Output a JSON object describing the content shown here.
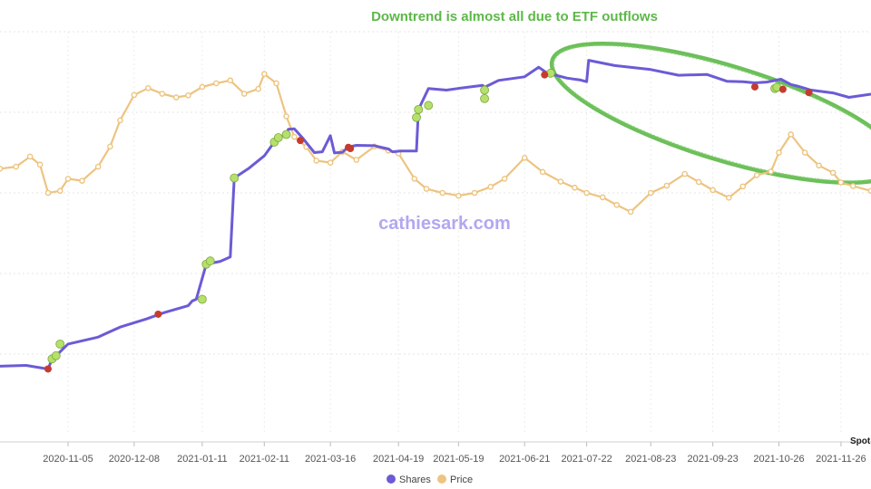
{
  "chart_data": {
    "type": "line",
    "title": "",
    "annotation": "Downtrend is almost all due to ETF outflows",
    "watermark": "cathiesark.com",
    "credit": "Spot",
    "xlabel": "",
    "ylabel": "",
    "x_ticks": [
      "2020-11-05",
      "2020-12-08",
      "2021-01-11",
      "2021-02-11",
      "2021-03-16",
      "2021-04-19",
      "2021-05-19",
      "2021-06-21",
      "2021-07-22",
      "2021-08-23",
      "2021-09-23",
      "2021-10-26",
      "2021-11-26"
    ],
    "x_range": [
      "2020-10-02",
      "2021-12-11"
    ],
    "y_range": [
      0,
      100
    ],
    "grid": true,
    "legend_position": "bottom",
    "colors": {
      "shares": "#6b5bd6",
      "price": "#edc480",
      "buy_marker": "#b5e06b",
      "sell_marker": "#c53b30",
      "annotation": "#5cb848",
      "watermark": "#b1a8f0"
    },
    "series": [
      {
        "name": "Shares",
        "x": [
          "2020-10-02",
          "2020-10-15",
          "2020-10-26",
          "2020-10-28",
          "2020-10-30",
          "2020-11-05",
          "2020-11-20",
          "2020-12-01",
          "2020-12-14",
          "2020-12-23",
          "2021-01-04",
          "2021-01-06",
          "2021-01-08",
          "2021-01-13",
          "2021-01-20",
          "2021-01-25",
          "2021-01-27",
          "2021-02-03",
          "2021-02-11",
          "2021-02-16",
          "2021-02-18",
          "2021-02-22",
          "2021-02-23",
          "2021-02-26",
          "2021-03-02",
          "2021-03-08",
          "2021-03-12",
          "2021-03-16",
          "2021-03-18",
          "2021-03-22",
          "2021-03-25",
          "2021-03-29",
          "2021-04-07",
          "2021-04-14",
          "2021-04-16",
          "2021-04-20",
          "2021-04-28",
          "2021-04-29",
          "2021-04-30",
          "2021-05-04",
          "2021-05-13",
          "2021-05-20",
          "2021-05-31",
          "2021-06-01",
          "2021-06-08",
          "2021-06-21",
          "2021-06-28",
          "2021-07-02",
          "2021-07-12",
          "2021-07-19",
          "2021-07-22",
          "2021-07-23",
          "2021-08-05",
          "2021-08-23",
          "2021-09-06",
          "2021-09-20",
          "2021-09-30",
          "2021-10-08",
          "2021-10-14",
          "2021-10-20",
          "2021-10-25",
          "2021-10-27",
          "2021-11-01",
          "2021-11-05",
          "2021-11-11",
          "2021-11-22",
          "2021-11-30",
          "2021-12-11"
        ],
        "values": [
          17.0,
          17.2,
          16.3,
          18.8,
          19.6,
          22.5,
          24.2,
          26.7,
          28.7,
          30.3,
          32.0,
          33.2,
          33.6,
          42.3,
          43.0,
          44.1,
          63.7,
          66.0,
          69.2,
          72.6,
          73.7,
          74.5,
          75.8,
          75.9,
          73.7,
          70.0,
          70.2,
          74.2,
          69.9,
          70.1,
          71.4,
          71.8,
          71.7,
          70.9,
          70.2,
          70.4,
          70.4,
          80.7,
          81.7,
          85.9,
          85.5,
          86.0,
          86.7,
          86.2,
          87.9,
          88.8,
          91.2,
          89.8,
          88.5,
          88.0,
          87.6,
          92.9,
          91.6,
          90.6,
          89.2,
          89.4,
          87.7,
          87.6,
          87.3,
          87.5,
          88.0,
          88.2,
          86.9,
          86.4,
          85.5,
          84.8,
          83.7,
          84.5
        ]
      },
      {
        "name": "Price",
        "x": [
          "2020-10-02",
          "2020-10-10",
          "2020-10-17",
          "2020-10-22",
          "2020-10-26",
          "2020-11-01",
          "2020-11-05",
          "2020-11-12",
          "2020-11-20",
          "2020-11-26",
          "2020-12-01",
          "2020-12-08",
          "2020-12-15",
          "2020-12-22",
          "2020-12-29",
          "2021-01-04",
          "2021-01-11",
          "2021-01-18",
          "2021-01-25",
          "2021-02-01",
          "2021-02-08",
          "2021-02-11",
          "2021-02-17",
          "2021-02-22",
          "2021-02-26",
          "2021-03-04",
          "2021-03-09",
          "2021-03-16",
          "2021-03-22",
          "2021-03-29",
          "2021-04-07",
          "2021-04-14",
          "2021-04-19",
          "2021-04-27",
          "2021-05-03",
          "2021-05-11",
          "2021-05-19",
          "2021-05-27",
          "2021-06-04",
          "2021-06-11",
          "2021-06-21",
          "2021-06-30",
          "2021-07-09",
          "2021-07-16",
          "2021-07-22",
          "2021-07-30",
          "2021-08-06",
          "2021-08-13",
          "2021-08-23",
          "2021-08-31",
          "2021-09-09",
          "2021-09-16",
          "2021-09-23",
          "2021-10-01",
          "2021-10-08",
          "2021-10-15",
          "2021-10-22",
          "2021-10-26",
          "2021-11-01",
          "2021-11-08",
          "2021-11-15",
          "2021-11-22",
          "2021-11-26",
          "2021-12-02",
          "2021-12-11"
        ],
        "values": [
          66.0,
          66.5,
          69.0,
          67.0,
          60.0,
          60.5,
          63.5,
          63.0,
          66.5,
          71.5,
          78.0,
          84.3,
          86.0,
          84.6,
          83.7,
          84.2,
          86.3,
          87.2,
          87.9,
          84.6,
          85.8,
          89.5,
          87.2,
          79.0,
          73.9,
          71.4,
          68.0,
          67.5,
          70.2,
          68.2,
          71.5,
          70.5,
          69.8,
          63.5,
          61.0,
          60.0,
          59.3,
          60.0,
          61.5,
          63.5,
          68.7,
          65.2,
          62.8,
          61.3,
          60.0,
          58.9,
          57.0,
          55.3,
          60.0,
          61.8,
          64.7,
          62.7,
          60.7,
          58.8,
          61.6,
          64.4,
          65.3,
          70.0,
          74.5,
          70.0,
          66.8,
          65.0,
          62.6,
          61.7,
          60.5
        ]
      }
    ],
    "buy_markers": [
      {
        "series": "Shares",
        "x": "2020-10-28",
        "y": 18.8
      },
      {
        "series": "Shares",
        "x": "2020-10-30",
        "y": 19.6
      },
      {
        "series": "Shares",
        "x": "2020-11-01",
        "y": 22.5
      },
      {
        "series": "Shares",
        "x": "2021-01-11",
        "y": 33.6
      },
      {
        "series": "Shares",
        "x": "2021-01-13",
        "y": 42.3
      },
      {
        "series": "Shares",
        "x": "2021-01-15",
        "y": 43.1
      },
      {
        "series": "Shares",
        "x": "2021-01-27",
        "y": 63.7
      },
      {
        "series": "Shares",
        "x": "2021-02-16",
        "y": 72.6
      },
      {
        "series": "Shares",
        "x": "2021-02-18",
        "y": 73.7
      },
      {
        "series": "Shares",
        "x": "2021-02-22",
        "y": 74.5
      },
      {
        "series": "Shares",
        "x": "2021-04-28",
        "y": 78.7
      },
      {
        "series": "Shares",
        "x": "2021-04-29",
        "y": 80.7
      },
      {
        "series": "Shares",
        "x": "2021-05-04",
        "y": 81.7
      },
      {
        "series": "Shares",
        "x": "2021-06-01",
        "y": 83.4
      },
      {
        "series": "Shares",
        "x": "2021-06-01",
        "y": 85.5
      },
      {
        "series": "Shares",
        "x": "2021-07-04",
        "y": 89.7
      },
      {
        "series": "Shares",
        "x": "2021-10-24",
        "y": 85.9
      },
      {
        "series": "Shares",
        "x": "2021-10-25",
        "y": 86.2
      }
    ],
    "sell_markers": [
      {
        "series": "Shares",
        "x": "2020-10-26",
        "y": 16.3
      },
      {
        "series": "Shares",
        "x": "2020-12-20",
        "y": 29.9
      },
      {
        "series": "Shares",
        "x": "2021-03-01",
        "y": 73.0
      },
      {
        "series": "Shares",
        "x": "2021-03-25",
        "y": 71.3
      },
      {
        "series": "Shares",
        "x": "2021-03-26",
        "y": 71.0
      },
      {
        "series": "Shares",
        "x": "2021-07-01",
        "y": 89.3
      },
      {
        "series": "Shares",
        "x": "2021-10-14",
        "y": 86.3
      },
      {
        "series": "Shares",
        "x": "2021-10-28",
        "y": 85.7
      },
      {
        "series": "Shares",
        "x": "2021-11-10",
        "y": 84.9
      }
    ]
  }
}
